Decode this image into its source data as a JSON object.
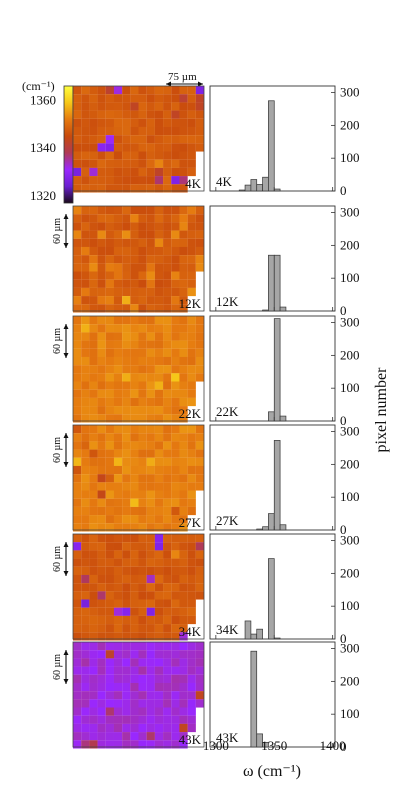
{
  "colorbar": {
    "unit": "(cm⁻¹)",
    "ticks": [
      "1360",
      "1340",
      "1320"
    ],
    "tick_values": [
      1360,
      1340,
      1320
    ],
    "range": [
      1317,
      1366
    ],
    "stops": [
      "#1a0a1a",
      "#6a1fd0",
      "#9a28ff",
      "#b03a55",
      "#c84a0c",
      "#e57a10",
      "#f6c718",
      "#ffff40"
    ]
  },
  "scale_bars": {
    "top": "75 µm",
    "side": "60 µm"
  },
  "colors": {
    "bar_fill": "#a6a6a6",
    "bar_stroke": "#333333",
    "map_grid": "#ffffff"
  },
  "chart_data": {
    "type": "bar",
    "xlabel": "ω (cm⁻¹)",
    "ylabel": "pixel number",
    "xlim": [
      1295,
      1402
    ],
    "ylim": [
      0,
      320
    ],
    "xticks": [
      1300,
      1350,
      1400
    ],
    "yticks": [
      0,
      100,
      200,
      300
    ],
    "bin_width": 5,
    "panels": [
      {
        "label": "4K",
        "bars": [
          [
            1320,
            3
          ],
          [
            1325,
            18
          ],
          [
            1330,
            35
          ],
          [
            1335,
            20
          ],
          [
            1340,
            42
          ],
          [
            1345,
            275
          ],
          [
            1350,
            6
          ]
        ]
      },
      {
        "label": "12K",
        "bars": [
          [
            1340,
            3
          ],
          [
            1345,
            170
          ],
          [
            1350,
            170
          ],
          [
            1355,
            12
          ]
        ]
      },
      {
        "label": "22K",
        "bars": [
          [
            1345,
            28
          ],
          [
            1350,
            312
          ],
          [
            1355,
            15
          ]
        ]
      },
      {
        "label": "27K",
        "bars": [
          [
            1335,
            3
          ],
          [
            1340,
            10
          ],
          [
            1345,
            50
          ],
          [
            1350,
            273
          ],
          [
            1355,
            16
          ]
        ]
      },
      {
        "label": "34K",
        "bars": [
          [
            1325,
            55
          ],
          [
            1330,
            15
          ],
          [
            1335,
            30
          ],
          [
            1345,
            245
          ],
          [
            1350,
            3
          ]
        ]
      },
      {
        "label": "43K",
        "bars": [
          [
            1330,
            292
          ],
          [
            1335,
            40
          ],
          [
            1340,
            14
          ]
        ]
      }
    ]
  }
}
